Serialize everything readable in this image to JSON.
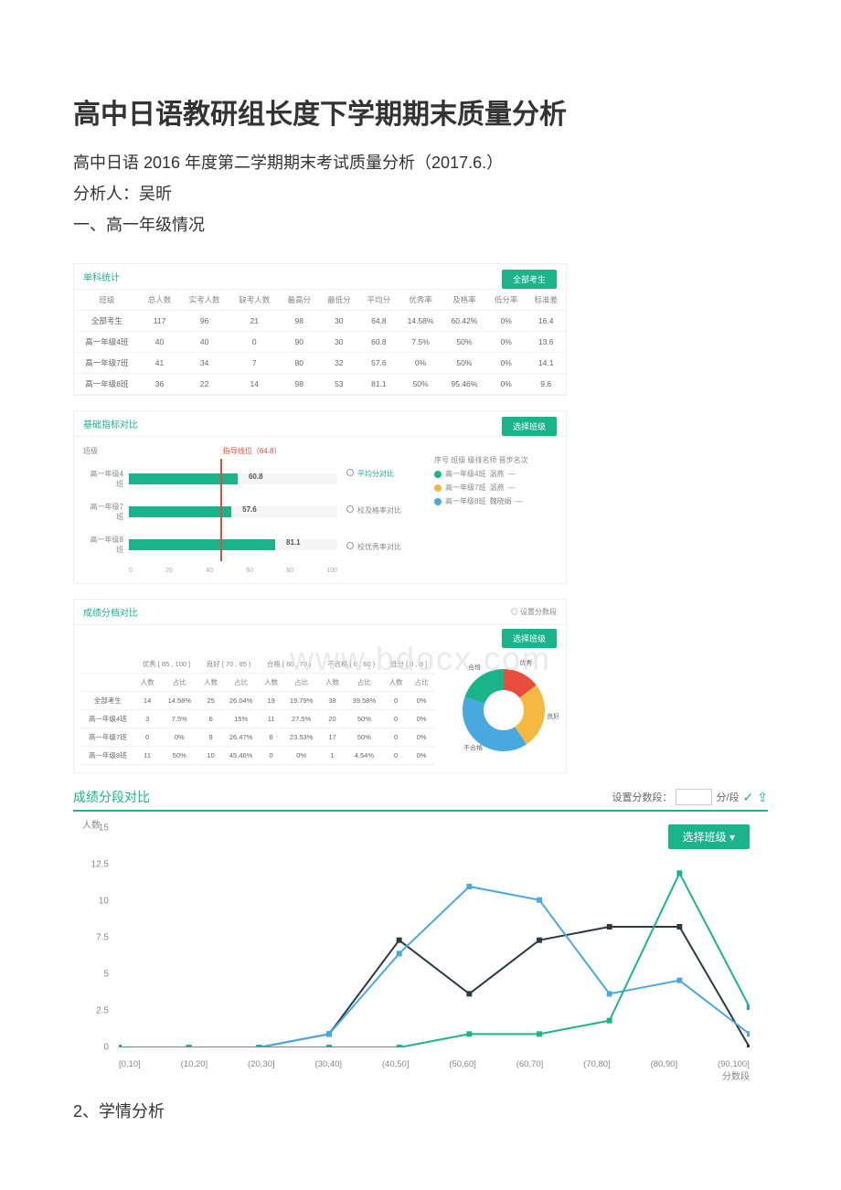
{
  "title": "高中日语教研组长度下学期期末质量分析",
  "subtitle": "高中日语 2016 年度第二学期期末考试质量分析（2017.6.）",
  "author_line": "分析人：吴昕",
  "section1": "一、高一年级情况",
  "watermark": "www.bdocx.com",
  "footer": "2、学情分析",
  "panel1": {
    "title": "单科统计",
    "btn": "全部考生",
    "columns": [
      "班级",
      "总人数",
      "实考人数",
      "缺考人数",
      "最高分",
      "最低分",
      "平均分",
      "优秀率",
      "及格率",
      "低分率",
      "标准差"
    ],
    "rows": [
      [
        "全部考生",
        "117",
        "96",
        "21",
        "98",
        "30",
        "64.8",
        "14.58%",
        "60.42%",
        "0%",
        "16.4"
      ],
      [
        "高一年级4班",
        "40",
        "40",
        "0",
        "90",
        "30",
        "60.8",
        "7.5%",
        "50%",
        "0%",
        "13.6"
      ],
      [
        "高一年级7班",
        "41",
        "34",
        "7",
        "80",
        "32",
        "57.6",
        "0%",
        "50%",
        "0%",
        "14.1"
      ],
      [
        "高一年级8班",
        "36",
        "22",
        "14",
        "98",
        "53",
        "81.1",
        "50%",
        "95.46%",
        "0%",
        "9.6"
      ]
    ]
  },
  "panel2": {
    "title": "基础指标对比",
    "btn": "选择班级",
    "axis_label": "班级",
    "ref_label": "指导线位（64.8）",
    "ref_pos_pct": 55,
    "bars": [
      {
        "label": "高一年级4班",
        "value": 60.8,
        "pct": 52
      },
      {
        "label": "高一年级7班",
        "value": 57.6,
        "pct": 49
      },
      {
        "label": "高一年级8班",
        "value": 81.1,
        "pct": 70
      }
    ],
    "xticks": [
      "0",
      "20",
      "40",
      "60",
      "80",
      "100"
    ],
    "mid_labels": [
      "平均分对比",
      "校及格率对比",
      "校优秀率对比"
    ],
    "legend_head": [
      "序号",
      "班级",
      "级排名师 晋步名次"
    ],
    "legend": [
      {
        "color": "#1bb38a",
        "cls": "高一年级4班",
        "t": "温燕",
        "r": "—"
      },
      {
        "color": "#f5b942",
        "cls": "高一年级7班",
        "t": "温燕",
        "r": "—"
      },
      {
        "color": "#4aa8e0",
        "cls": "高一年级8班",
        "t": "魏晓娟",
        "r": "—"
      }
    ]
  },
  "panel3": {
    "title": "成绩分档对比",
    "link": "◎ 设置分数段",
    "btn": "选择班级",
    "head1": [
      "",
      "优秀 [ 85 , 100 ]",
      "良好 [ 70 , 85 )",
      "合格 [ 60 , 70 )",
      "不合格 [ 0 , 60 )",
      "低分 [ 0 , 8 ]"
    ],
    "head2": [
      "",
      "人数",
      "占比",
      "人数",
      "占比",
      "人数",
      "占比",
      "人数",
      "占比",
      "人数",
      "占比"
    ],
    "rows": [
      [
        "全部考生",
        "14",
        "14.58%",
        "25",
        "26.04%",
        "19",
        "19.79%",
        "38",
        "39.58%",
        "0",
        "0%"
      ],
      [
        "高一年级4班",
        "3",
        "7.5%",
        "6",
        "15%",
        "11",
        "27.5%",
        "20",
        "50%",
        "0",
        "0%"
      ],
      [
        "高一年级7班",
        "0",
        "0%",
        "9",
        "26.47%",
        "8",
        "23.53%",
        "17",
        "50%",
        "0",
        "0%"
      ],
      [
        "高一年级8班",
        "11",
        "50%",
        "10",
        "45.46%",
        "0",
        "0%",
        "1",
        "4.54%",
        "0",
        "0%"
      ]
    ],
    "donut": {
      "slices": [
        {
          "label": "优秀",
          "color": "#e74c3c",
          "pct": 14.58
        },
        {
          "label": "良好",
          "color": "#f5b942",
          "pct": 26.04
        },
        {
          "label": "不合格",
          "color": "#4aa8e0",
          "pct": 39.58
        },
        {
          "label": "合格",
          "color": "#1bb38a",
          "pct": 19.79
        }
      ]
    }
  },
  "chart": {
    "title": "成绩分段对比",
    "setting_label": "设置分数段：",
    "unit": "分/段",
    "btn": "选择班级",
    "ylabel": "人数",
    "ymax": 15,
    "yticks": [
      15,
      12.5,
      10,
      7.5,
      5,
      2.5,
      0
    ],
    "xticks": [
      "[0,10]",
      "(10,20]",
      "(20,30]",
      "(30,40]",
      "(40,50]",
      "(50,60]",
      "(60,70]",
      "(70,80]",
      "(80,90]",
      "(90,100]"
    ],
    "xlabel": "分数段",
    "series": [
      {
        "color": "#2b3a42",
        "data": [
          0,
          0,
          0,
          1,
          8,
          4,
          8,
          9,
          9,
          0
        ]
      },
      {
        "color": "#4aa8e0",
        "data": [
          0,
          0,
          0,
          1,
          7,
          12,
          11,
          4,
          5,
          1
        ]
      },
      {
        "color": "#1bb38a",
        "data": [
          0,
          0,
          0,
          0,
          0,
          1,
          1,
          2,
          13,
          3
        ]
      }
    ]
  }
}
